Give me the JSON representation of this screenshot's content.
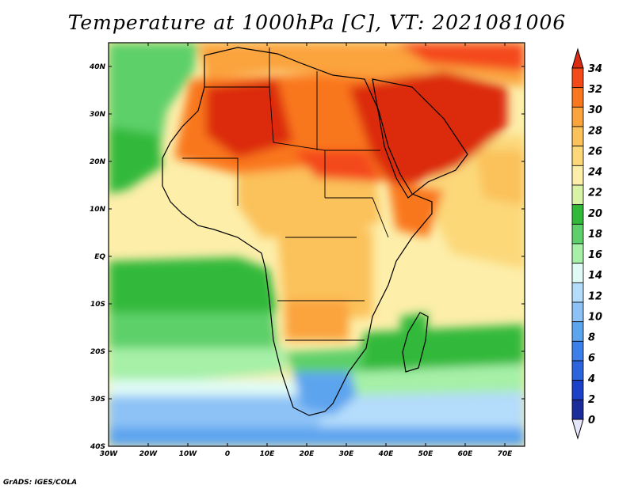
{
  "title": "Temperature at 1000hPa [C], VT: 2021081006",
  "credit": "GrADS: IGES/COLA",
  "map": {
    "region": "Africa",
    "lon_range": [
      -30,
      75
    ],
    "lat_range": [
      -40,
      45
    ],
    "lon_labels": [
      "30W",
      "20W",
      "10W",
      "0",
      "10E",
      "20E",
      "30E",
      "40E",
      "50E",
      "60E",
      "70E"
    ],
    "lat_labels": [
      "40N",
      "30N",
      "20N",
      "10N",
      "EQ",
      "10S",
      "20S",
      "30S",
      "40S"
    ],
    "lat_label_values": [
      40,
      30,
      20,
      10,
      0,
      -10,
      -20,
      -30,
      -40
    ],
    "lon_label_values": [
      -30,
      -20,
      -10,
      0,
      10,
      20,
      30,
      40,
      50,
      60,
      70
    ],
    "colorbar": {
      "levels": [
        "34",
        "32",
        "30",
        "28",
        "26",
        "24",
        "22",
        "20",
        "18",
        "16",
        "14",
        "12",
        "10",
        "8",
        "6",
        "4",
        "2",
        "0"
      ],
      "colors": [
        "#f44a1a",
        "#f9771e",
        "#fba33d",
        "#fbc15a",
        "#fcd879",
        "#fdeeaa",
        "#d8f3a6",
        "#32b93a",
        "#5dd069",
        "#a6f0a8",
        "#e0fbf5",
        "#b4dcfb",
        "#8dc2f6",
        "#5da4ef",
        "#3d7fea",
        "#2c64de",
        "#1a41c8",
        "#1a2b9a"
      ],
      "over_color": "#dc2b10",
      "under_color": "#e6e6fa"
    }
  }
}
